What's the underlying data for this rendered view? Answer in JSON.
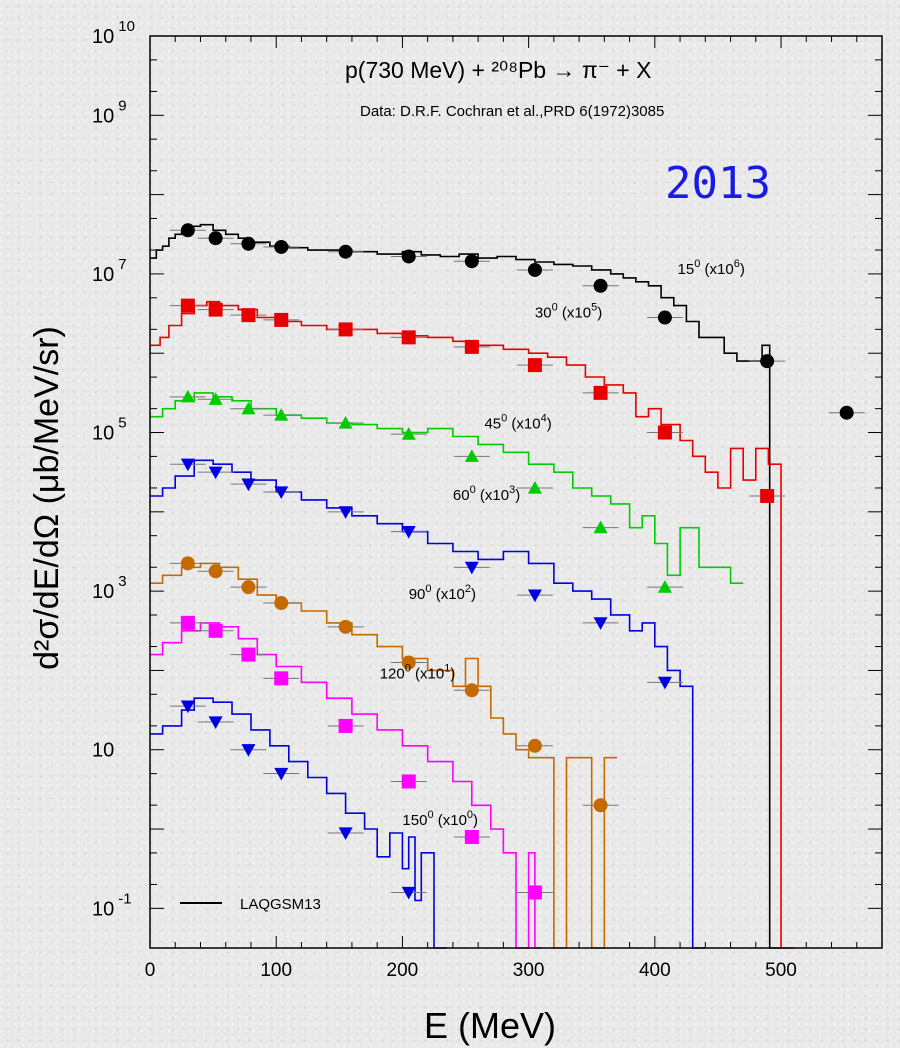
{
  "chart_data": {
    "type": "scatter",
    "title": "p(730 MeV) + ²⁰⁸Pb → π⁻ + X",
    "subtitle": "Data:  D.R.F. Cochran et al.,PRD 6(1972)3085",
    "year_label": "2013",
    "xlabel": "E (MeV)",
    "ylabel": "d²σ/dE/dΩ (μb/MeV/sr)",
    "xlim": [
      0,
      580
    ],
    "ylim_log10": [
      -1.5,
      10
    ],
    "y_scale": "log",
    "x_ticks": [
      "0",
      "100",
      "200",
      "300",
      "400",
      "500"
    ],
    "y_ticks": [
      {
        "base": "10",
        "exp": "10",
        "value_log10": 10
      },
      {
        "base": "10",
        "exp": "9",
        "value_log10": 9
      },
      {
        "base": "10",
        "exp": "7",
        "value_log10": 7
      },
      {
        "base": "10",
        "exp": "5",
        "value_log10": 5
      },
      {
        "base": "10",
        "exp": "3",
        "value_log10": 3
      },
      {
        "base": "10",
        "exp": "",
        "value_log10": 1
      },
      {
        "base": "10",
        "exp": "-1",
        "value_log10": -1
      }
    ],
    "legend": {
      "label": "LAQGSM13",
      "position": "bottom-left"
    },
    "series": [
      {
        "angle": "15",
        "scale": "6",
        "color": "#000000",
        "marker": "circle",
        "label_pos": [
          418,
          7.0
        ],
        "points": [
          [
            30,
            7.55
          ],
          [
            52,
            7.45
          ],
          [
            78,
            7.38
          ],
          [
            104,
            7.34
          ],
          [
            155,
            7.28
          ],
          [
            205,
            7.22
          ],
          [
            255,
            7.16
          ],
          [
            305,
            7.05
          ],
          [
            357,
            6.85
          ],
          [
            408,
            6.45
          ],
          [
            489,
            5.9
          ],
          [
            552,
            5.25
          ]
        ],
        "hist": [
          [
            0,
            7.2
          ],
          [
            5,
            7.3
          ],
          [
            10,
            7.35
          ],
          [
            15,
            7.45
          ],
          [
            20,
            7.5
          ],
          [
            25,
            7.55
          ],
          [
            30,
            7.6
          ],
          [
            40,
            7.62
          ],
          [
            50,
            7.55
          ],
          [
            60,
            7.5
          ],
          [
            70,
            7.45
          ],
          [
            80,
            7.4
          ],
          [
            95,
            7.35
          ],
          [
            110,
            7.33
          ],
          [
            125,
            7.3
          ],
          [
            140,
            7.3
          ],
          [
            160,
            7.28
          ],
          [
            180,
            7.25
          ],
          [
            200,
            7.28
          ],
          [
            215,
            7.24
          ],
          [
            230,
            7.22
          ],
          [
            245,
            7.25
          ],
          [
            260,
            7.2
          ],
          [
            275,
            7.22
          ],
          [
            290,
            7.18
          ],
          [
            305,
            7.15
          ],
          [
            320,
            7.12
          ],
          [
            335,
            7.1
          ],
          [
            350,
            7.05
          ],
          [
            365,
            7.0
          ],
          [
            375,
            6.95
          ],
          [
            385,
            6.9
          ],
          [
            395,
            6.85
          ],
          [
            405,
            6.7
          ],
          [
            415,
            6.6
          ],
          [
            425,
            6.4
          ],
          [
            435,
            6.2
          ],
          [
            445,
            6.2
          ],
          [
            455,
            6.0
          ],
          [
            465,
            5.9
          ],
          [
            475,
            5.9
          ],
          [
            485,
            6.1
          ],
          [
            491,
            -1.5
          ],
          [
            500,
            -1.5
          ]
        ]
      },
      {
        "angle": "30",
        "scale": "5",
        "color": "#e80000",
        "marker": "square",
        "label_pos": [
          305,
          6.45
        ],
        "points": [
          [
            30,
            6.6
          ],
          [
            52,
            6.55
          ],
          [
            78,
            6.48
          ],
          [
            104,
            6.42
          ],
          [
            155,
            6.3
          ],
          [
            205,
            6.2
          ],
          [
            255,
            6.08
          ],
          [
            305,
            5.85
          ],
          [
            357,
            5.5
          ],
          [
            408,
            5.0
          ],
          [
            489,
            4.2
          ]
        ],
        "hist": [
          [
            0,
            6.1
          ],
          [
            8,
            6.2
          ],
          [
            15,
            6.35
          ],
          [
            25,
            6.5
          ],
          [
            35,
            6.6
          ],
          [
            45,
            6.65
          ],
          [
            55,
            6.6
          ],
          [
            70,
            6.55
          ],
          [
            85,
            6.45
          ],
          [
            100,
            6.4
          ],
          [
            120,
            6.35
          ],
          [
            140,
            6.3
          ],
          [
            160,
            6.3
          ],
          [
            180,
            6.25
          ],
          [
            200,
            6.22
          ],
          [
            220,
            6.2
          ],
          [
            240,
            6.15
          ],
          [
            260,
            6.1
          ],
          [
            280,
            6.05
          ],
          [
            300,
            6.0
          ],
          [
            315,
            5.95
          ],
          [
            330,
            5.85
          ],
          [
            345,
            5.7
          ],
          [
            360,
            5.6
          ],
          [
            375,
            5.5
          ],
          [
            385,
            5.2
          ],
          [
            395,
            5.3
          ],
          [
            405,
            5.1
          ],
          [
            420,
            4.9
          ],
          [
            430,
            4.7
          ],
          [
            440,
            4.5
          ],
          [
            450,
            4.3
          ],
          [
            460,
            4.8
          ],
          [
            470,
            4.4
          ],
          [
            480,
            4.8
          ],
          [
            490,
            4.6
          ],
          [
            500,
            -1.5
          ],
          [
            510,
            -1.5
          ]
        ]
      },
      {
        "angle": "45",
        "scale": "4",
        "color": "#00cc00",
        "marker": "triangle-up",
        "label_pos": [
          265,
          5.05
        ],
        "points": [
          [
            30,
            5.45
          ],
          [
            52,
            5.42
          ],
          [
            78,
            5.3
          ],
          [
            104,
            5.22
          ],
          [
            155,
            5.12
          ],
          [
            205,
            4.98
          ],
          [
            255,
            4.7
          ],
          [
            305,
            4.3
          ],
          [
            357,
            3.8
          ],
          [
            408,
            3.05
          ]
        ],
        "hist": [
          [
            0,
            5.2
          ],
          [
            10,
            5.3
          ],
          [
            20,
            5.4
          ],
          [
            35,
            5.5
          ],
          [
            50,
            5.45
          ],
          [
            65,
            5.4
          ],
          [
            80,
            5.3
          ],
          [
            100,
            5.22
          ],
          [
            120,
            5.18
          ],
          [
            140,
            5.12
          ],
          [
            160,
            5.1
          ],
          [
            180,
            5.05
          ],
          [
            200,
            5.0
          ],
          [
            220,
            5.05
          ],
          [
            240,
            4.95
          ],
          [
            260,
            4.85
          ],
          [
            280,
            4.75
          ],
          [
            300,
            4.6
          ],
          [
            320,
            4.5
          ],
          [
            335,
            4.3
          ],
          [
            350,
            4.2
          ],
          [
            365,
            4.1
          ],
          [
            380,
            3.8
          ],
          [
            390,
            3.95
          ],
          [
            400,
            3.6
          ],
          [
            410,
            3.2
          ],
          [
            420,
            3.8
          ],
          [
            435,
            3.3
          ],
          [
            450,
            3.3
          ],
          [
            460,
            3.1
          ],
          [
            470,
            3.1
          ]
        ]
      },
      {
        "angle": "60",
        "scale": "3",
        "color": "#0000e0",
        "marker": "triangle-down",
        "label_pos": [
          240,
          4.15
        ],
        "points": [
          [
            30,
            4.6
          ],
          [
            52,
            4.5
          ],
          [
            78,
            4.35
          ],
          [
            104,
            4.25
          ],
          [
            155,
            4.0
          ],
          [
            205,
            3.75
          ],
          [
            255,
            3.3
          ],
          [
            305,
            2.95
          ],
          [
            357,
            2.6
          ],
          [
            408,
            1.85
          ]
        ],
        "hist": [
          [
            0,
            4.2
          ],
          [
            10,
            4.3
          ],
          [
            20,
            4.45
          ],
          [
            35,
            4.65
          ],
          [
            50,
            4.6
          ],
          [
            65,
            4.5
          ],
          [
            80,
            4.4
          ],
          [
            100,
            4.25
          ],
          [
            120,
            4.15
          ],
          [
            140,
            4.05
          ],
          [
            160,
            3.95
          ],
          [
            180,
            3.85
          ],
          [
            200,
            3.75
          ],
          [
            220,
            3.6
          ],
          [
            240,
            3.5
          ],
          [
            260,
            3.4
          ],
          [
            280,
            3.5
          ],
          [
            300,
            3.35
          ],
          [
            320,
            3.1
          ],
          [
            335,
            3.0
          ],
          [
            350,
            2.9
          ],
          [
            365,
            2.7
          ],
          [
            380,
            2.5
          ],
          [
            390,
            2.6
          ],
          [
            400,
            2.3
          ],
          [
            410,
            2.0
          ],
          [
            420,
            1.8
          ],
          [
            430,
            -1.5
          ],
          [
            440,
            -1.5
          ]
        ]
      },
      {
        "angle": "90",
        "scale": "2",
        "color": "#c46a00",
        "marker": "circle",
        "label_pos": [
          205,
          2.9
        ],
        "points": [
          [
            30,
            3.35
          ],
          [
            52,
            3.25
          ],
          [
            78,
            3.05
          ],
          [
            104,
            2.85
          ],
          [
            155,
            2.55
          ],
          [
            205,
            2.1
          ],
          [
            255,
            1.75
          ],
          [
            305,
            1.05
          ],
          [
            357,
            0.3
          ]
        ],
        "hist": [
          [
            0,
            3.1
          ],
          [
            10,
            3.2
          ],
          [
            25,
            3.3
          ],
          [
            40,
            3.35
          ],
          [
            55,
            3.3
          ],
          [
            70,
            3.15
          ],
          [
            85,
            2.95
          ],
          [
            100,
            2.85
          ],
          [
            120,
            2.75
          ],
          [
            140,
            2.6
          ],
          [
            160,
            2.45
          ],
          [
            180,
            2.3
          ],
          [
            200,
            2.15
          ],
          [
            220,
            2.0
          ],
          [
            240,
            1.8
          ],
          [
            250,
            2.15
          ],
          [
            260,
            1.8
          ],
          [
            270,
            1.4
          ],
          [
            280,
            1.2
          ],
          [
            290,
            1.0
          ],
          [
            300,
            0.9
          ],
          [
            310,
            0.9
          ],
          [
            320,
            -1.5
          ],
          [
            330,
            0.9
          ],
          [
            340,
            0.9
          ],
          [
            350,
            -1.5
          ],
          [
            360,
            0.9
          ],
          [
            370,
            0.9
          ]
        ]
      },
      {
        "angle": "120",
        "scale": "1",
        "color": "#ff00ff",
        "marker": "square",
        "label_pos": [
          182,
          1.9
        ],
        "points": [
          [
            30,
            2.6
          ],
          [
            52,
            2.5
          ],
          [
            78,
            2.2
          ],
          [
            104,
            1.9
          ],
          [
            155,
            1.3
          ],
          [
            205,
            0.6
          ],
          [
            255,
            -0.1
          ],
          [
            305,
            -0.8
          ]
        ],
        "hist": [
          [
            0,
            2.2
          ],
          [
            10,
            2.35
          ],
          [
            25,
            2.5
          ],
          [
            40,
            2.6
          ],
          [
            55,
            2.55
          ],
          [
            70,
            2.4
          ],
          [
            85,
            2.2
          ],
          [
            100,
            2.05
          ],
          [
            120,
            1.85
          ],
          [
            140,
            1.65
          ],
          [
            160,
            1.45
          ],
          [
            180,
            1.25
          ],
          [
            200,
            1.05
          ],
          [
            220,
            0.85
          ],
          [
            240,
            0.6
          ],
          [
            255,
            0.3
          ],
          [
            270,
            0.0
          ],
          [
            280,
            -0.3
          ],
          [
            290,
            -1.5
          ],
          [
            300,
            -0.3
          ],
          [
            305,
            -1.5
          ],
          [
            310,
            -1.5
          ]
        ]
      },
      {
        "angle": "150",
        "scale": "0",
        "color": "#0000e0",
        "marker": "triangle-down",
        "label_pos": [
          200,
          0.05
        ],
        "points": [
          [
            30,
            1.55
          ],
          [
            52,
            1.35
          ],
          [
            78,
            1.0
          ],
          [
            104,
            0.7
          ],
          [
            155,
            -0.05
          ],
          [
            205,
            -0.8
          ]
        ],
        "hist": [
          [
            0,
            1.2
          ],
          [
            10,
            1.3
          ],
          [
            25,
            1.5
          ],
          [
            35,
            1.65
          ],
          [
            50,
            1.6
          ],
          [
            65,
            1.45
          ],
          [
            80,
            1.25
          ],
          [
            95,
            1.05
          ],
          [
            110,
            0.85
          ],
          [
            125,
            0.65
          ],
          [
            140,
            0.45
          ],
          [
            155,
            0.2
          ],
          [
            170,
            0.0
          ],
          [
            180,
            -0.35
          ],
          [
            190,
            -0.05
          ],
          [
            200,
            -0.5
          ],
          [
            205,
            -0.1
          ],
          [
            210,
            -0.9
          ],
          [
            215,
            -0.3
          ],
          [
            225,
            -1.5
          ],
          [
            235,
            -1.5
          ]
        ]
      }
    ]
  }
}
